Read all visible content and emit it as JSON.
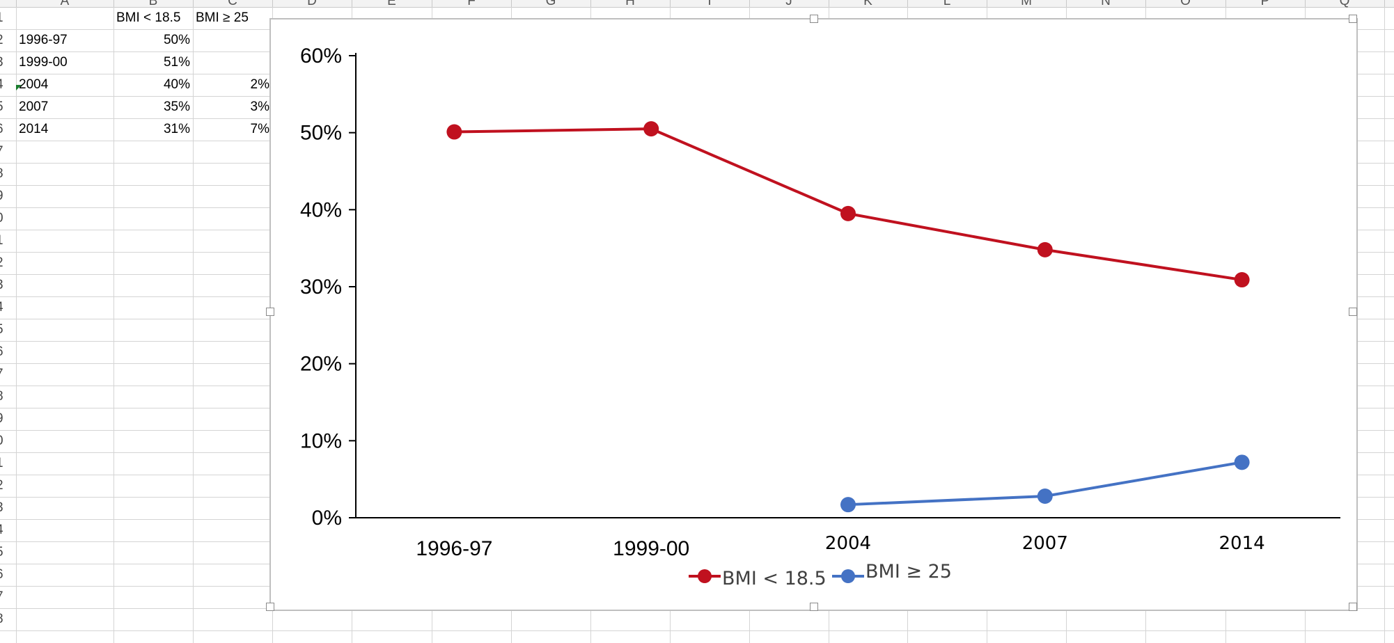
{
  "spreadsheet": {
    "column_headers": [
      "A",
      "B",
      "C",
      "D",
      "E",
      "F",
      "G",
      "H",
      "I",
      "J",
      "K",
      "L",
      "M",
      "N",
      "O",
      "P",
      "Q"
    ],
    "row_headers": [
      "1",
      "2",
      "3",
      "4",
      "5",
      "6",
      "7",
      "8",
      "9",
      "0",
      "1",
      "2",
      "3",
      "4",
      "5",
      "6",
      "7",
      "8",
      "9",
      "0",
      "1",
      "2",
      "3",
      "4",
      "5",
      "6",
      "7",
      "8"
    ],
    "header_row": {
      "b": "BMI < 18.5",
      "c": "BMI ≥ 25"
    },
    "rows": [
      {
        "a": "1996-97",
        "b": "50%",
        "c": ""
      },
      {
        "a": "1999-00",
        "b": "51%",
        "c": ""
      },
      {
        "a": "2004",
        "b": "40%",
        "c": "2%"
      },
      {
        "a": "2007",
        "b": "35%",
        "c": "3%"
      },
      {
        "a": "2014",
        "b": "31%",
        "c": "7%"
      }
    ]
  },
  "chart_data": {
    "type": "line",
    "categories": [
      "1996-97",
      "1999-00",
      "2004",
      "2007",
      "2014"
    ],
    "series": [
      {
        "name": "BMI < 18.5",
        "color": "#c0111f",
        "values": [
          50.1,
          50.5,
          39.5,
          34.8,
          30.9
        ]
      },
      {
        "name": "BMI ≥ 25",
        "color": "#4472c4",
        "values": [
          null,
          null,
          1.7,
          2.8,
          7.2
        ]
      }
    ],
    "ylim": [
      0,
      60
    ],
    "yticks": [
      "0%",
      "10%",
      "20%",
      "30%",
      "40%",
      "50%",
      "60%"
    ],
    "grid": false,
    "legend": "bottom"
  }
}
